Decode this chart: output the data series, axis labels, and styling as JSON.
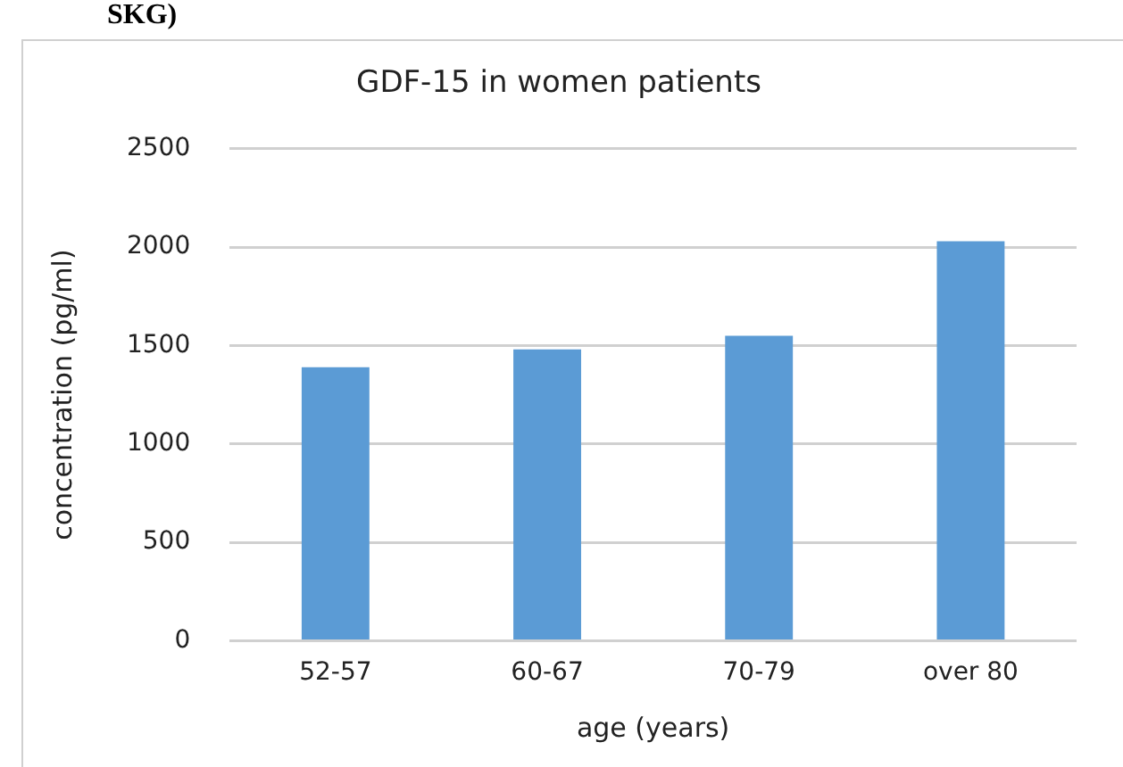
{
  "chart_data": {
    "type": "bar",
    "title": "GDF-15 in women patients",
    "xlabel": "age (years)",
    "ylabel": "concentration (pg/ml)",
    "categories": [
      "52-57",
      "60-67",
      "70-79",
      "over 80"
    ],
    "values": [
      1390,
      1480,
      1550,
      2030
    ],
    "color": "#5b9bd5",
    "ylim": [
      0,
      2500
    ],
    "yticks": [
      0,
      500,
      1000,
      1500,
      2000,
      2500
    ],
    "grid": "y",
    "annotations": [
      "SKG)"
    ]
  }
}
